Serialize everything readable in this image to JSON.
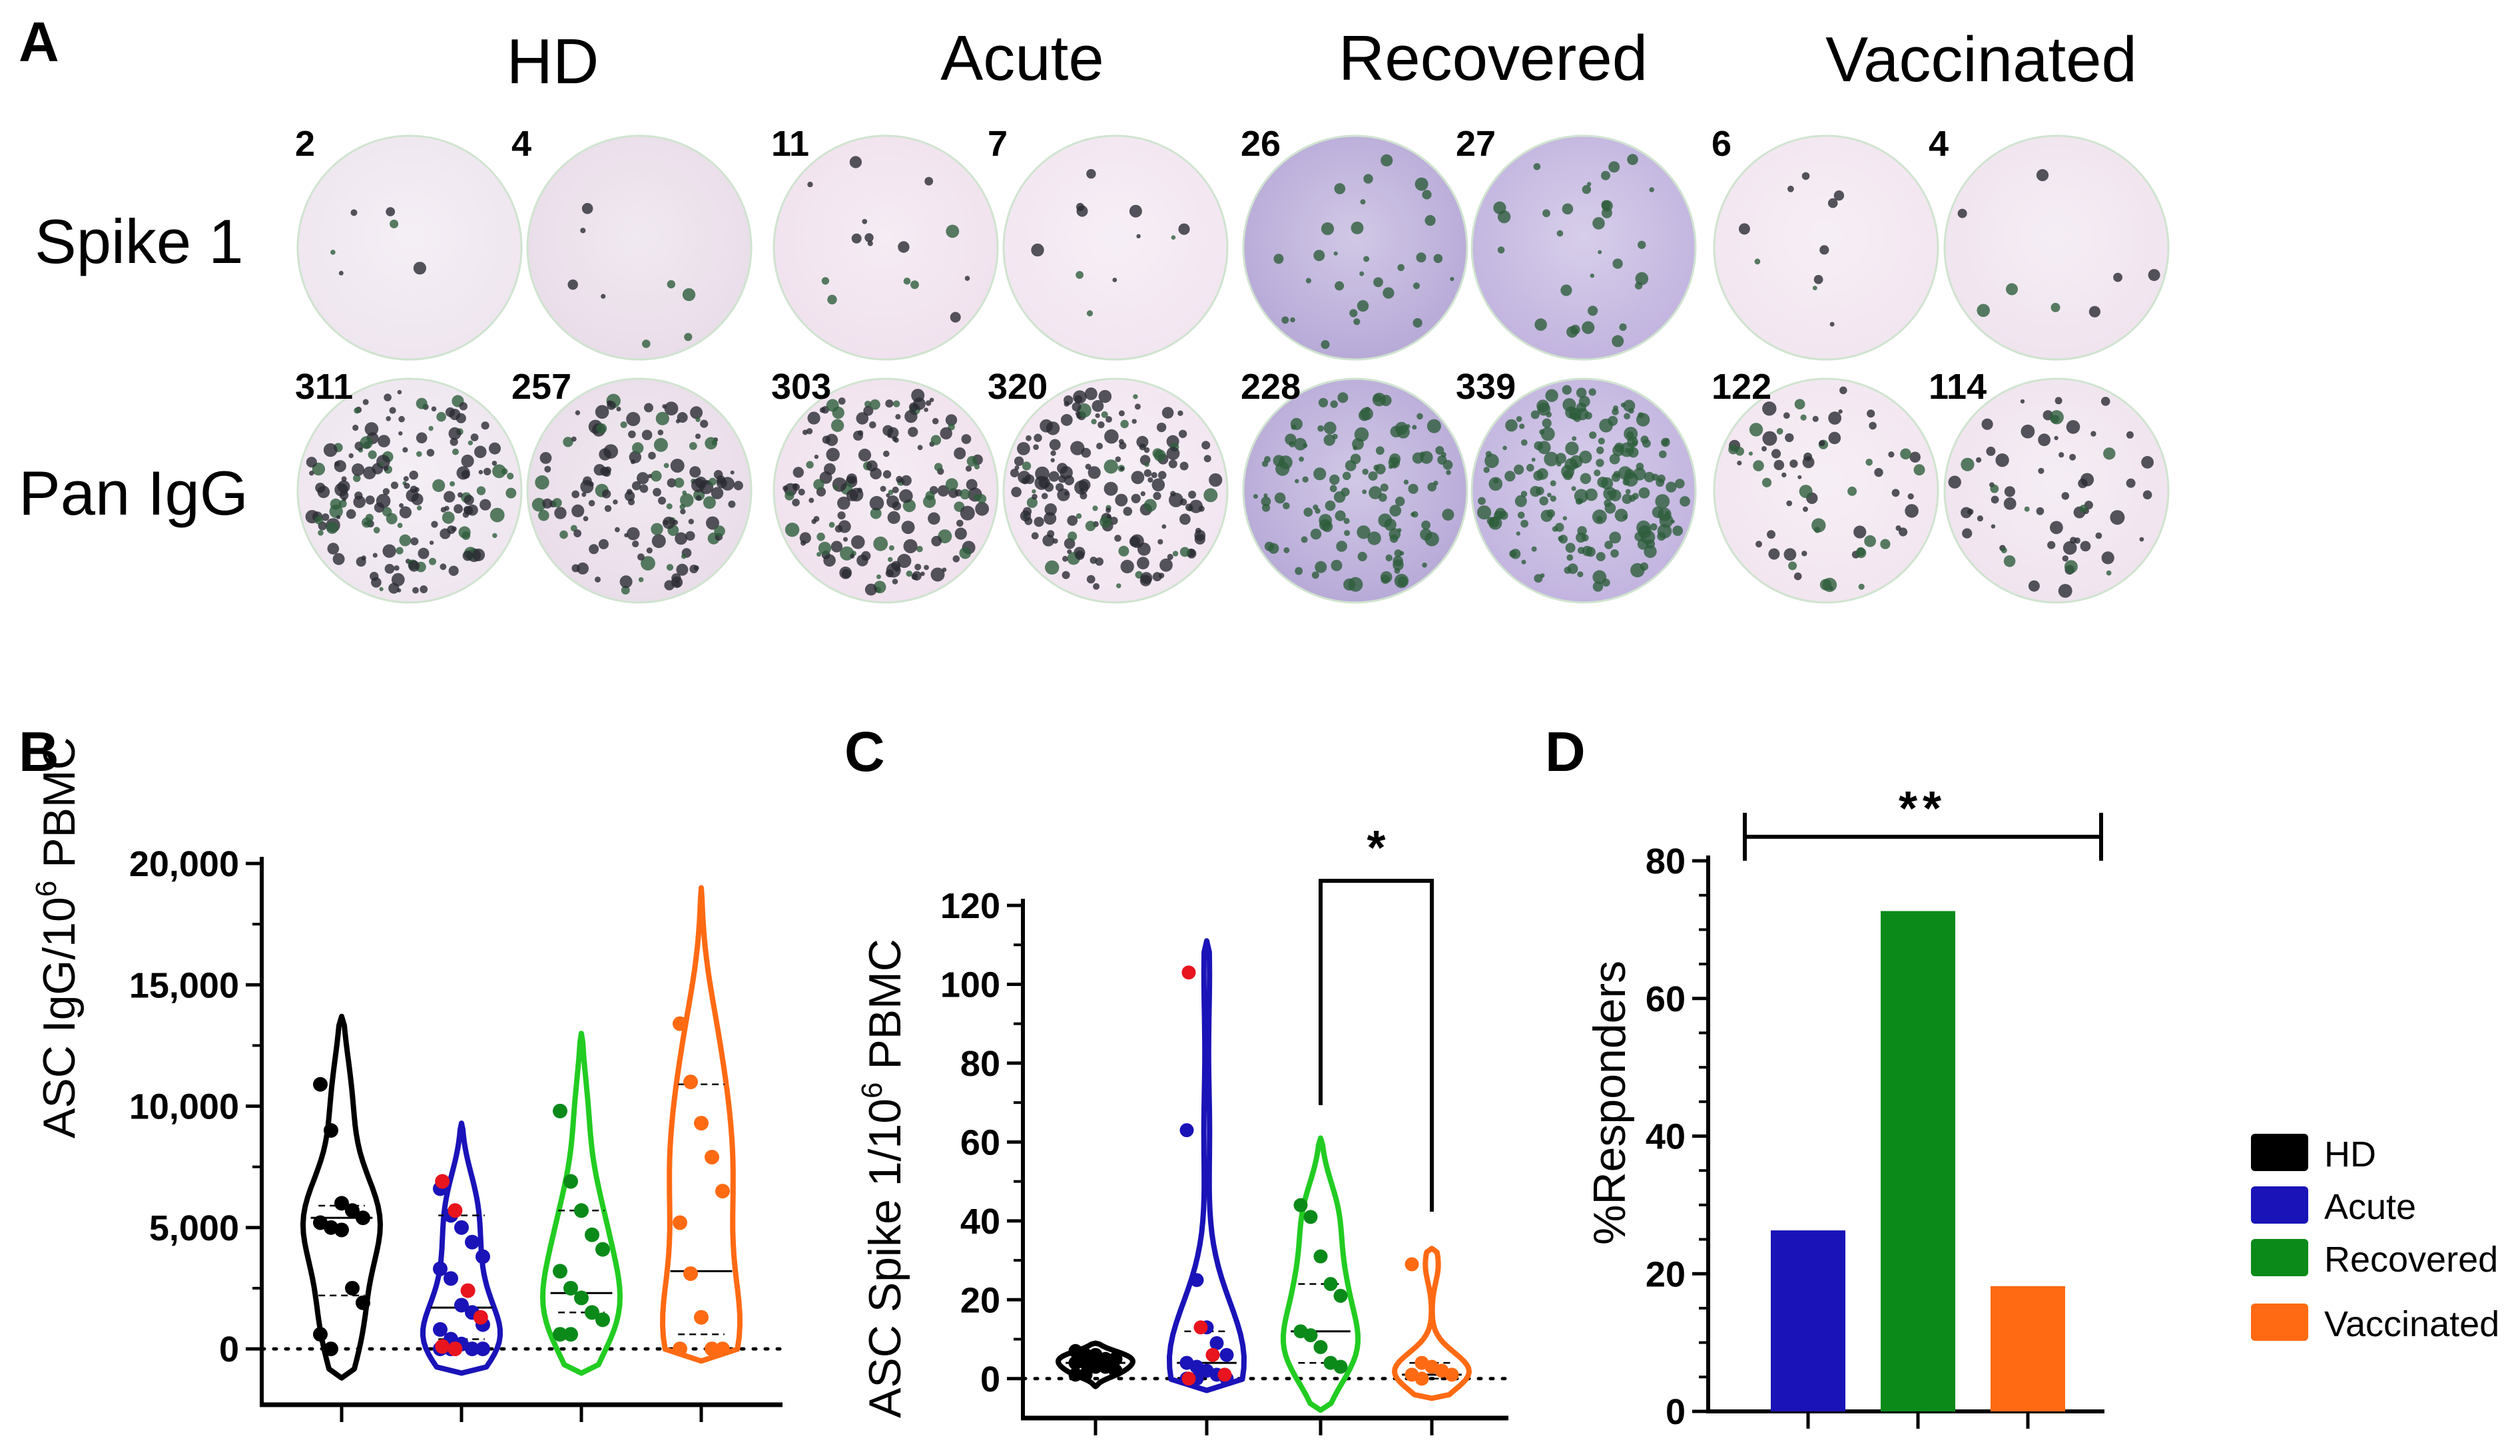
{
  "figure": {
    "panel_a": {
      "label": "A",
      "groups": [
        {
          "name": "HD",
          "spike_counts": [
            "2",
            "4"
          ],
          "igg_counts": [
            "311",
            "257"
          ],
          "tint": "#efe6f0",
          "tint2": "#e9dde9"
        },
        {
          "name": "Acute",
          "spike_counts": [
            "11",
            "7"
          ],
          "igg_counts": [
            "303",
            "320"
          ],
          "tint": "#f0e2ee",
          "tint2": "#f2e6f1"
        },
        {
          "name": "Recovered",
          "spike_counts": [
            "26",
            "27"
          ],
          "igg_counts": [
            "228",
            "339"
          ],
          "tint": "#b8aad8",
          "tint2": "#c2b4df"
        },
        {
          "name": "Vaccinated",
          "spike_counts": [
            "6",
            "4"
          ],
          "igg_counts": [
            "122",
            "114"
          ],
          "tint": "#f2e6f0",
          "tint2": "#f0e4ef"
        }
      ],
      "rows": [
        "Spike 1",
        "Pan IgG"
      ]
    },
    "panel_b": {
      "label": "B"
    },
    "panel_c": {
      "label": "C"
    },
    "panel_d": {
      "label": "D"
    },
    "legend": [
      {
        "name": "HD",
        "color": "#000000"
      },
      {
        "name": "Acute",
        "color": "#1a13b8"
      },
      {
        "name": "Recovered",
        "color": "#0b8a1a"
      },
      {
        "name": "Vaccinated",
        "color": "#ff6a13"
      }
    ]
  },
  "chart_data": [
    {
      "id": "B",
      "type": "violin",
      "ylabel": "ASC IgG/10⁶ PBMC",
      "ylabel_main": "ASC IgG/10",
      "ylabel_sup": "6",
      "ylabel_tail": " PBMC",
      "ylim": [
        -2000,
        20000
      ],
      "yticks": [
        0,
        5000,
        10000,
        15000,
        20000
      ],
      "ytick_labels": [
        "0",
        "5,000",
        "10,000",
        "15,000",
        "20,000"
      ],
      "reference_line": 0,
      "categories": [
        "HD",
        "Acute",
        "Recovered",
        "Vaccinated"
      ],
      "series": [
        {
          "name": "HD",
          "color": "#000000",
          "min": -1200,
          "max": 13700,
          "median": 5400,
          "q1": 2200,
          "q3": 5900,
          "points": [
            10900,
            9000,
            6000,
            5700,
            5400,
            5200,
            5000,
            4900,
            2500,
            1900,
            600,
            0
          ]
        },
        {
          "name": "Acute",
          "color": "#1a13b8",
          "min": -1000,
          "max": 9300,
          "median": 1700,
          "q1": 400,
          "q3": 5500,
          "points": [
            6600,
            5500,
            5000,
            4400,
            3800,
            3300,
            2900,
            1800,
            1500,
            1000,
            800,
            400,
            200,
            0,
            0,
            0,
            0
          ],
          "highlight": [
            6900,
            5700,
            2400,
            1300,
            100,
            0
          ]
        },
        {
          "name": "Recovered",
          "color": "#22cc22",
          "min": -1000,
          "max": 13000,
          "median": 2300,
          "q1": 1500,
          "q3": 5700,
          "points": [
            9800,
            6900,
            5700,
            4700,
            4100,
            3200,
            2500,
            2100,
            1500,
            1200,
            600,
            600
          ]
        },
        {
          "name": "Vaccinated",
          "color": "#ff6a13",
          "min": -500,
          "max": 19000,
          "median": 3200,
          "q1": 600,
          "q3": 10900,
          "points": [
            13400,
            11000,
            9300,
            7900,
            6500,
            5200,
            3100,
            1300,
            0,
            0,
            0
          ]
        }
      ]
    },
    {
      "id": "C",
      "type": "violin",
      "ylabel": "ASC Spike 1/10⁶ PBMC",
      "ylabel_main": "ASC Spike 1/10",
      "ylabel_sup": "6",
      "ylabel_tail": " PBMC",
      "ylim": [
        -10,
        120
      ],
      "yticks": [
        0,
        20,
        40,
        60,
        80,
        100,
        120
      ],
      "ytick_labels": [
        "0",
        "20",
        "40",
        "60",
        "80",
        "100",
        "120"
      ],
      "reference_line": 0,
      "categories": [
        "HD",
        "Acute",
        "Recovered",
        "Vaccinated"
      ],
      "annotation": {
        "text": "*",
        "from": "Recovered",
        "to": "Vaccinated",
        "y": 128
      },
      "series": [
        {
          "name": "HD",
          "color": "#000000",
          "min": -2,
          "max": 9,
          "median": 4,
          "q1": 2,
          "q3": 6,
          "points": [
            7,
            6,
            6,
            5,
            5,
            4,
            4,
            3,
            3,
            2,
            1,
            1
          ]
        },
        {
          "name": "Acute",
          "color": "#1a13b8",
          "min": -3,
          "max": 111,
          "median": 4,
          "q1": 1,
          "q3": 12,
          "points": [
            63,
            25,
            13,
            9,
            6,
            4,
            3,
            2,
            1,
            0,
            0,
            0
          ],
          "highlight": [
            103,
            13,
            6,
            1,
            0
          ]
        },
        {
          "name": "Recovered",
          "color": "#22cc22",
          "min": -8,
          "max": 61,
          "median": 12,
          "q1": 4,
          "q3": 24,
          "points": [
            44,
            41,
            31,
            24,
            21,
            12,
            11,
            8,
            4,
            3
          ]
        },
        {
          "name": "Vaccinated",
          "color": "#ff6a13",
          "min": -5,
          "max": 33,
          "median": 1,
          "q1": 0,
          "q3": 4,
          "points": [
            29,
            4,
            3,
            2,
            1,
            1,
            0
          ]
        }
      ]
    },
    {
      "id": "D",
      "type": "bar",
      "ylabel": "%Responders",
      "ylim": [
        0,
        80
      ],
      "yticks": [
        0,
        20,
        40,
        60,
        80
      ],
      "ytick_labels": [
        "0",
        "20",
        "40",
        "60",
        "80"
      ],
      "categories": [
        "Acute",
        "Recovered",
        "Vaccinated"
      ],
      "values": [
        26.3,
        72.7,
        18.2
      ],
      "colors": [
        "#1a13b8",
        "#0b8a1a",
        "#ff6a13"
      ],
      "annotation": {
        "text": "**",
        "y": 83.5
      }
    }
  ]
}
